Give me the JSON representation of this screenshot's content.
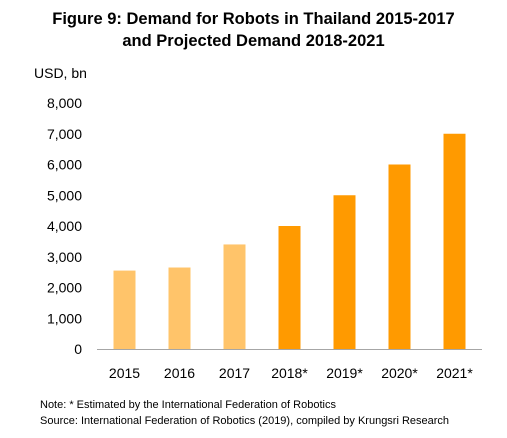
{
  "chart_data": {
    "type": "bar",
    "title": "Figure 9: Demand for Robots in Thailand 2015-2017",
    "subtitle": "and Projected Demand 2018-2021",
    "ylabel": "USD, bn",
    "xlabel": "",
    "categories": [
      "2015",
      "2016",
      "2017",
      "2018*",
      "2019*",
      "2020*",
      "2021*"
    ],
    "values": [
      2550,
      2650,
      3400,
      4000,
      5000,
      6000,
      7000
    ],
    "projected": [
      false,
      false,
      false,
      true,
      true,
      true,
      true
    ],
    "ylim": [
      0,
      8000
    ],
    "yticks": [
      "0",
      "1,000",
      "2,000",
      "3,000",
      "4,000",
      "5,000",
      "6,000",
      "7,000",
      "8,000"
    ],
    "grid": false,
    "legend": "none",
    "colors": {
      "actual": "#FFC46A",
      "projected": "#FF9A00",
      "axis": "#A6A6A6"
    }
  },
  "notes": {
    "note": "Note: * Estimated by the International Federation of Robotics",
    "source": "Source: International Federation of Robotics (2019), compiled by Krungsri Research"
  }
}
